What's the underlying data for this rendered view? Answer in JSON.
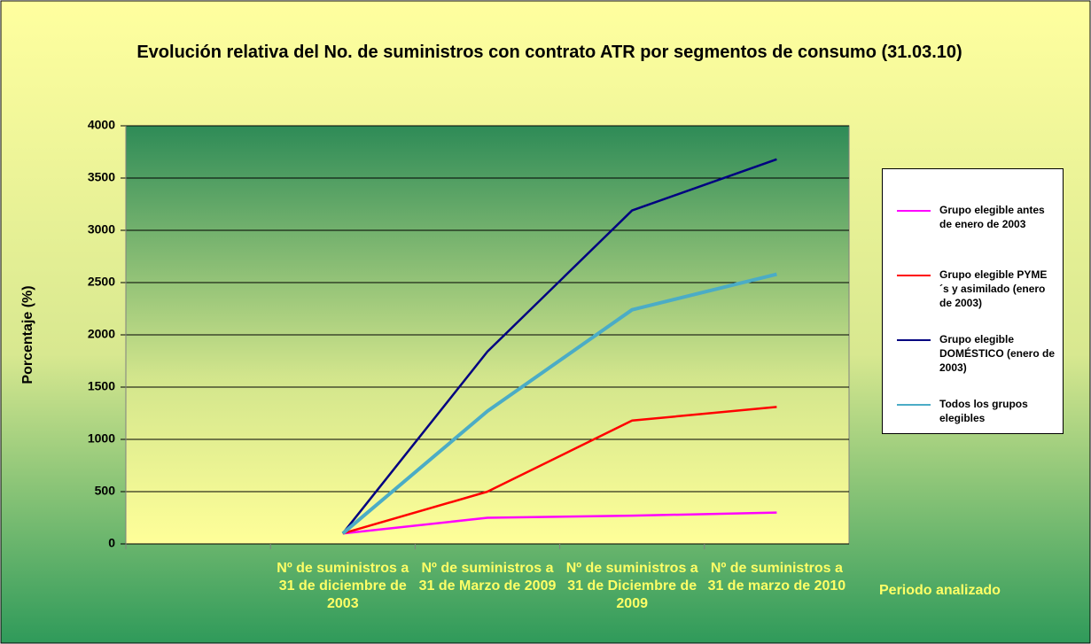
{
  "chart_data": {
    "type": "line",
    "title": "Evolución relativa del No. de suministros con contrato ATR por segmentos de consumo (31.03.10)",
    "y_label": "Porcentaje (%)",
    "x_label": "Periodo analizado",
    "categories": [
      null,
      "Nº de suministros a 31 de diciembre de 2003",
      "Nº de suministros a 31 de Marzo de 2009",
      "Nº de suministros a 31 de Diciembre de 2009",
      "Nº de suministros a 31 de marzo de 2010"
    ],
    "series": [
      {
        "name": "Grupo elegible antes de enero de 2003",
        "color": "#ff00ff",
        "values": [
          null,
          100,
          250,
          270,
          300
        ]
      },
      {
        "name": "Grupo elegible PYME´s y asimilado (enero de 2003)",
        "color": "#ff0000",
        "values": [
          null,
          100,
          500,
          1180,
          1310
        ]
      },
      {
        "name": "Grupo elegible DOMÉSTICO (enero de 2003)",
        "color": "#000080",
        "values": [
          null,
          100,
          1840,
          3190,
          3680
        ]
      },
      {
        "name": "Todos los grupos elegibles",
        "color": "#4bacc6",
        "values": [
          null,
          100,
          1270,
          2240,
          2580
        ]
      }
    ],
    "ylim": [
      0,
      4000
    ],
    "yticks": [
      0,
      500,
      1000,
      1500,
      2000,
      2500,
      3000,
      3500,
      4000
    ],
    "grid": true
  }
}
